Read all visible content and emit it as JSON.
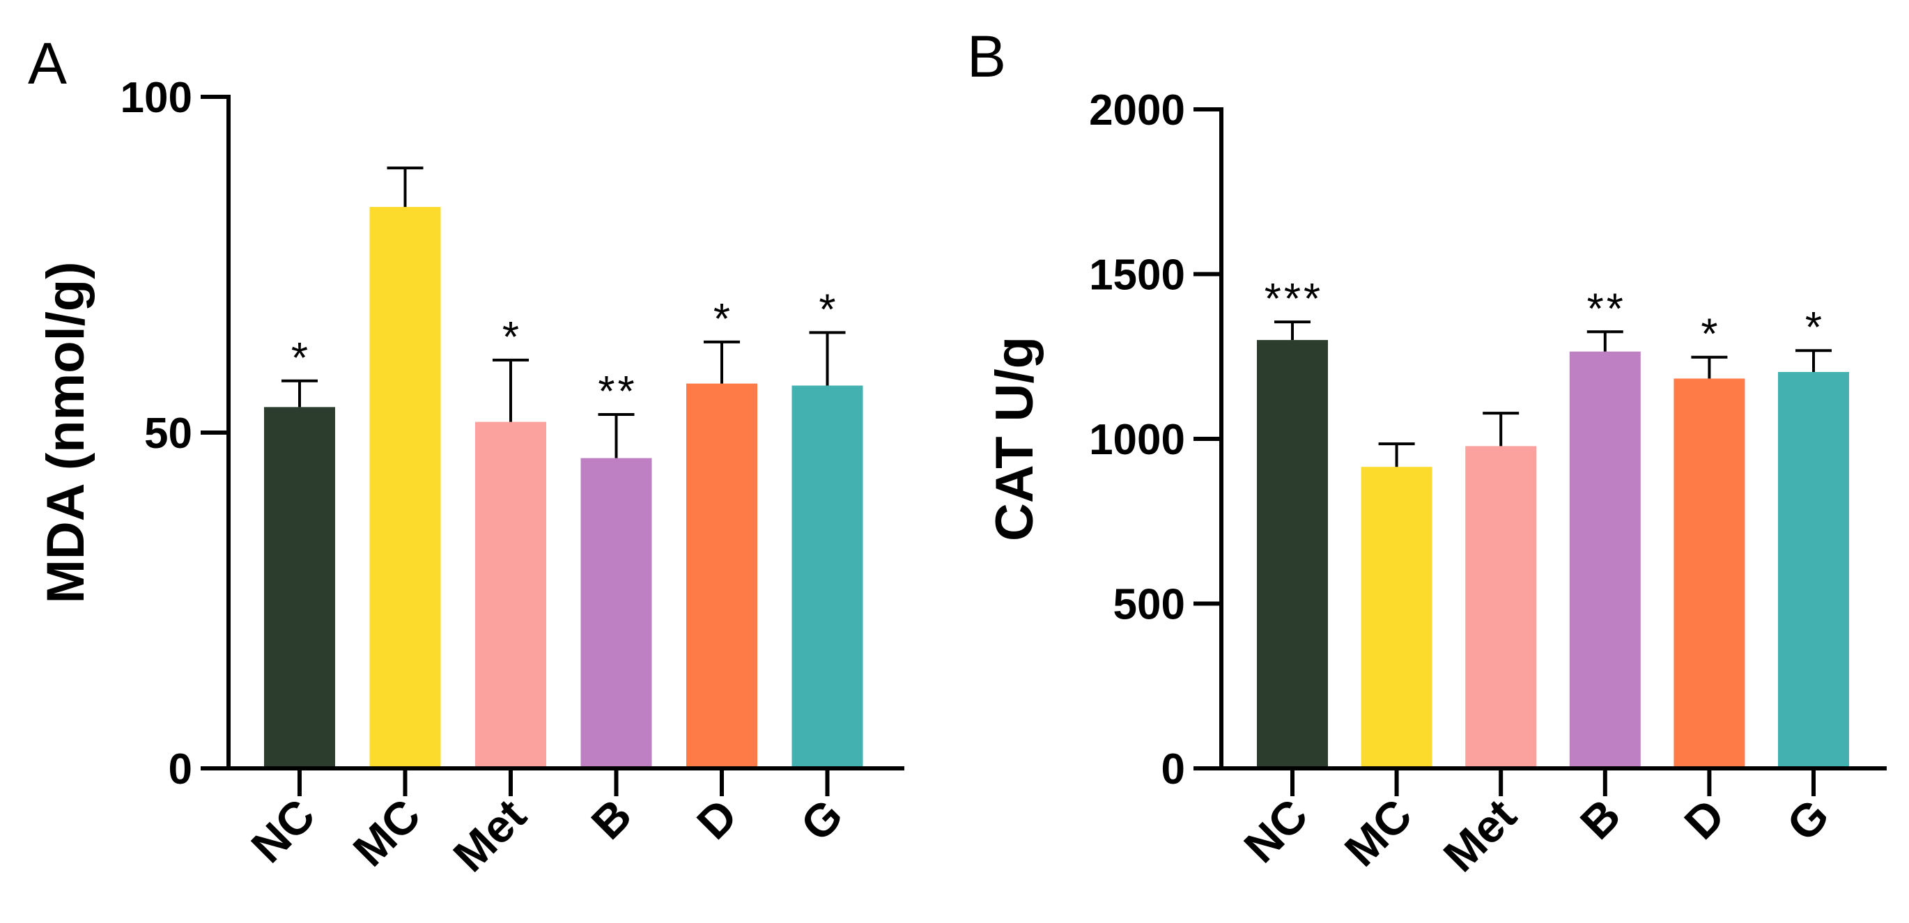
{
  "chart_data": [
    {
      "type": "bar",
      "panel": "A",
      "ylabel": "MDA (nmol/g)",
      "ylim": [
        0,
        100
      ],
      "yticks": [
        0,
        50,
        100
      ],
      "categories": [
        "NC",
        "MC",
        "Met",
        "B",
        "D",
        "G"
      ],
      "values": [
        53.8,
        83.6,
        51.6,
        46.2,
        57.3,
        57.0
      ],
      "errors": [
        3.9,
        5.8,
        9.2,
        6.5,
        6.2,
        7.9
      ],
      "significance": [
        "*",
        "",
        "*",
        "**",
        "*",
        "*"
      ],
      "colors": [
        "#2c3d2e",
        "#fddb2d",
        "#fba29f",
        "#bf7fc3",
        "#fe7a46",
        "#43b1b0"
      ]
    },
    {
      "type": "bar",
      "panel": "B",
      "ylabel": "CAT U/g",
      "ylim": [
        0,
        2000
      ],
      "yticks": [
        0,
        500,
        1000,
        1500,
        2000
      ],
      "categories": [
        "NC",
        "MC",
        "Met",
        "B",
        "D",
        "G"
      ],
      "values": [
        1300,
        915,
        978,
        1265,
        1183,
        1203
      ],
      "errors": [
        55,
        70,
        100,
        60,
        65,
        65
      ],
      "significance": [
        "***",
        "",
        "",
        "**",
        "*",
        "*"
      ],
      "colors": [
        "#2c3d2e",
        "#fddb2d",
        "#fba29f",
        "#bf7fc3",
        "#fe7a46",
        "#43b1b0"
      ]
    }
  ]
}
